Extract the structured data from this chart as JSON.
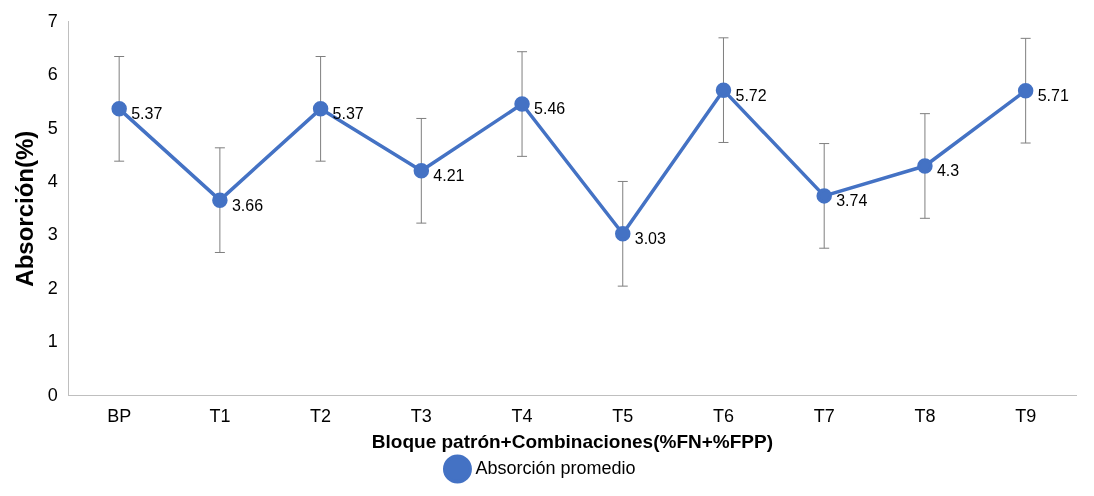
{
  "chart_data": {
    "type": "line",
    "xlabel": "Bloque patrón+Combinaciones(%FN+%FPP)",
    "ylabel": "Absorción(%)",
    "categories": [
      "BP",
      "T1",
      "T2",
      "T3",
      "T4",
      "T5",
      "T6",
      "T7",
      "T8",
      "T9"
    ],
    "series": [
      {
        "name": "Absorción promedio",
        "color": "#4472c4",
        "values": [
          5.37,
          3.66,
          5.37,
          4.21,
          5.46,
          3.03,
          5.72,
          3.74,
          4.3,
          5.71
        ],
        "errors": [
          0.98,
          0.98,
          0.98,
          0.98,
          0.98,
          0.98,
          0.98,
          0.98,
          0.98,
          0.98
        ]
      }
    ],
    "ylim": [
      0,
      7
    ],
    "yticks": [
      0,
      1,
      2,
      3,
      4,
      5,
      6,
      7
    ],
    "grid": false,
    "legend": "bottom",
    "marker": "circle",
    "line_style": "solid",
    "data_labels": true
  }
}
